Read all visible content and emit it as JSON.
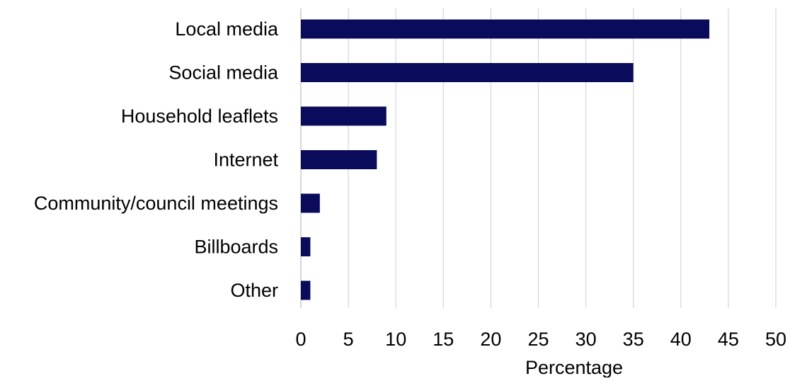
{
  "chart_data": {
    "type": "bar",
    "orientation": "horizontal",
    "categories": [
      "Local media",
      "Social media",
      "Household leaflets",
      "Internet",
      "Community/council meetings",
      "Billboards",
      "Other"
    ],
    "values": [
      43,
      35,
      9,
      8,
      2,
      1,
      1
    ],
    "title": "",
    "xlabel": "Percentage",
    "ylabel": "",
    "xlim": [
      0,
      50
    ],
    "xticks": [
      0,
      5,
      10,
      15,
      20,
      25,
      30,
      35,
      40,
      45,
      50
    ],
    "grid": "vertical",
    "legend": "none",
    "bar_color": "#0b0b5c",
    "grid_color": "#d9d9d9"
  }
}
